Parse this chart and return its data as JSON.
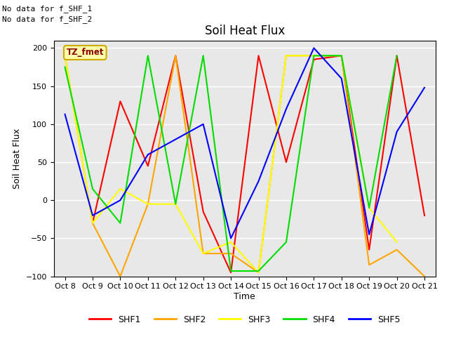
{
  "title": "Soil Heat Flux",
  "xlabel": "Time",
  "ylabel": "Soil Heat Flux",
  "ylim": [
    -100,
    210
  ],
  "yticks": [
    -100,
    -50,
    0,
    50,
    100,
    150,
    200
  ],
  "background_color": "#e8e8e8",
  "text_annotations": [
    "No data for f_SHF_1",
    "No data for f_SHF_2"
  ],
  "legend_label": "TZ_fmet",
  "x_labels": [
    "Oct 8",
    "Oct 9",
    "Oct 10",
    "Oct 11",
    "Oct 12",
    "Oct 13",
    "Oct 14",
    "Oct 15",
    "Oct 16",
    "Oct 17",
    "Oct 18",
    "Oct 19",
    "Oct 20",
    "Oct 21"
  ],
  "series": {
    "SHF1": {
      "color": "red",
      "x": [
        8,
        9,
        10,
        11,
        12,
        13,
        14,
        15,
        16,
        17,
        18,
        19,
        20,
        21
      ],
      "y": [
        null,
        -30,
        130,
        45,
        190,
        -15,
        -95,
        190,
        50,
        185,
        190,
        -65,
        190,
        -20
      ]
    },
    "SHF2": {
      "color": "orange",
      "x": [
        8,
        9,
        10,
        11,
        12,
        13,
        14,
        15,
        16,
        17,
        18,
        19,
        20,
        21
      ],
      "y": [
        190,
        -30,
        -100,
        -5,
        190,
        -70,
        -70,
        -95,
        190,
        190,
        190,
        -85,
        -65,
        -100
      ]
    },
    "SHF3": {
      "color": "yellow",
      "x": [
        8,
        9,
        10,
        11,
        12,
        13,
        14,
        15,
        16,
        17,
        18,
        19,
        20,
        21
      ],
      "y": [
        190,
        -30,
        15,
        -5,
        -5,
        -70,
        -55,
        -95,
        190,
        190,
        190,
        -10,
        -55,
        null
      ]
    },
    "SHF4": {
      "color": "#00dd00",
      "x": [
        8,
        9,
        10,
        11,
        12,
        13,
        14,
        15,
        16,
        17,
        18,
        19,
        20,
        21
      ],
      "y": [
        175,
        15,
        -30,
        190,
        -5,
        190,
        -93,
        -93,
        -55,
        190,
        190,
        -10,
        190,
        null
      ]
    },
    "SHF5": {
      "color": "blue",
      "x": [
        8,
        9,
        10,
        11,
        12,
        13,
        14,
        15,
        16,
        17,
        18,
        19,
        20,
        21
      ],
      "y": [
        113,
        -20,
        0,
        60,
        80,
        100,
        -50,
        25,
        120,
        200,
        160,
        -45,
        90,
        148
      ]
    }
  },
  "figsize": [
    6.4,
    4.8
  ],
  "dpi": 100,
  "title_fontsize": 12,
  "axis_fontsize": 9,
  "tick_fontsize": 8,
  "legend_fontsize": 9,
  "linewidth": 1.5
}
